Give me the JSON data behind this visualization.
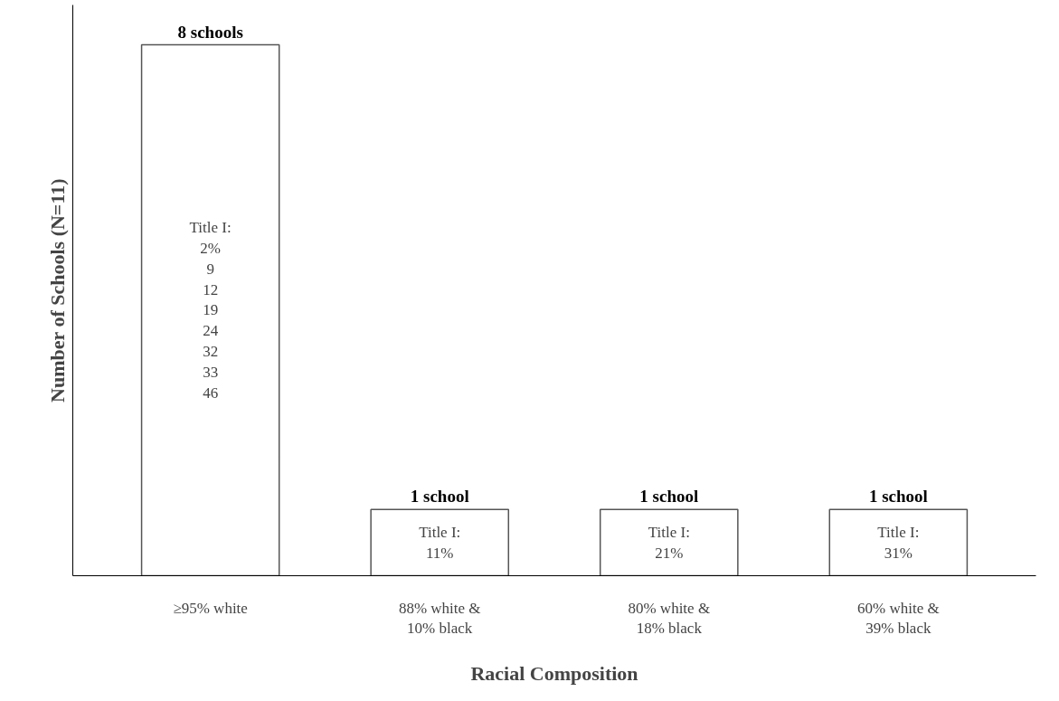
{
  "chart_data": {
    "type": "bar",
    "xlabel": "Racial Composition",
    "ylabel": "Number of Schools (N=11)",
    "categories": [
      "≥95% white",
      "88% white &\n10% black",
      "80% white &\n18% black",
      "60% white &\n39% black"
    ],
    "values": [
      8,
      1,
      1,
      1
    ],
    "value_labels": [
      "8 schools",
      "1 school",
      "1 school",
      "1 school"
    ],
    "color": "#ffffff",
    "ylim": [
      0,
      8.6
    ],
    "tick_labels": "x",
    "grid": false,
    "annotations": [
      "Title I:\n2%\n9\n12\n19\n24\n32\n33\n46",
      "Title I:\n11%",
      "Title I:\n21%",
      "Title I:\n31%"
    ]
  }
}
